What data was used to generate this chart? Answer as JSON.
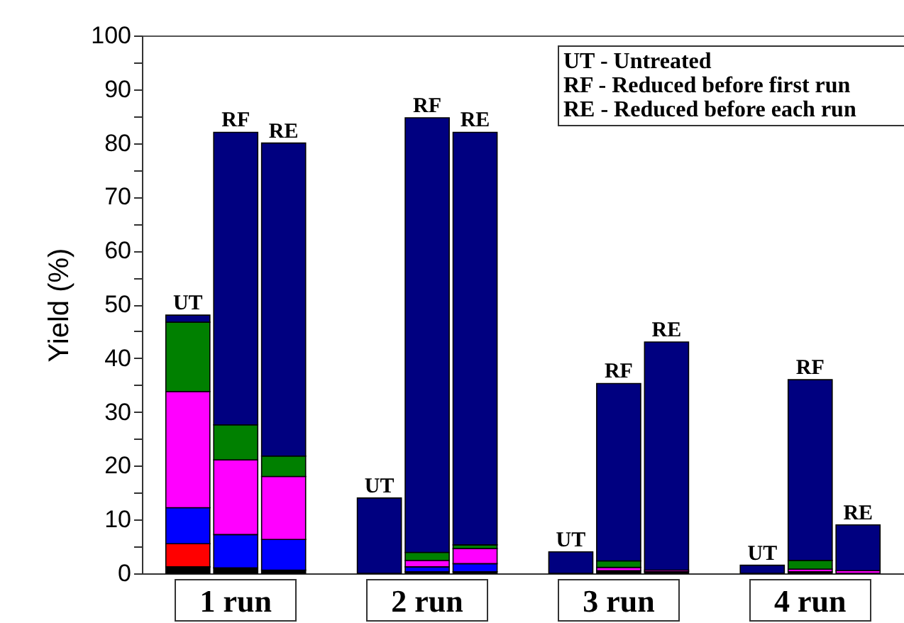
{
  "chart_data": {
    "type": "bar",
    "stacked": true,
    "ylabel": "Yield (%)",
    "categories": [
      null,
      null,
      null,
      null,
      null,
      null,
      null,
      null,
      null,
      null,
      null,
      null,
      null,
      null,
      null
    ],
    "series": [
      {
        "color": "#000000",
        "values": [
          1.2,
          1.0,
          0.6,
          null,
          null,
          0.3,
          0.3,
          null,
          null,
          0.5,
          0.3,
          null,
          null,
          0.3,
          null
        ]
      },
      {
        "color": "#ff0000",
        "values": [
          4.3,
          null,
          null,
          null,
          null,
          null,
          null,
          null,
          null,
          null,
          null,
          null,
          null,
          null,
          null
        ]
      },
      {
        "color": "#0000ff",
        "values": [
          6.7,
          6.2,
          5.7,
          null,
          null,
          0.9,
          1.5,
          null,
          null,
          null,
          null,
          null,
          null,
          null,
          null
        ]
      },
      {
        "color": "#ff00ff",
        "values": [
          21.6,
          13.9,
          11.7,
          null,
          null,
          1.2,
          2.8,
          null,
          null,
          0.6,
          0.3,
          null,
          null,
          0.5,
          0.5
        ]
      },
      {
        "color": "#008000",
        "values": [
          12.9,
          6.5,
          3.8,
          null,
          null,
          1.5,
          0.7,
          null,
          null,
          1.2,
          null,
          null,
          null,
          1.6,
          null
        ]
      },
      {
        "color": "#000080",
        "values": [
          1.3,
          54.4,
          58.2,
          null,
          14,
          80.8,
          76.7,
          null,
          4,
          33.0,
          42.4,
          null,
          1.5,
          33.6,
          8.5
        ],
        "value_labels": [
          "UT",
          "RF",
          "RE",
          null,
          "UT",
          "RF",
          "RE",
          null,
          "UT",
          "RF",
          "RE",
          null,
          "UT",
          "RF",
          "RE"
        ]
      }
    ],
    "ylim": [
      0,
      100
    ],
    "yticks": [
      0,
      {
        "value": 5,
        "label": null
      },
      10,
      {
        "value": 15,
        "label": null
      },
      20,
      {
        "value": 25,
        "label": null
      },
      30,
      {
        "value": 35,
        "label": null
      },
      40,
      {
        "value": 45,
        "label": null
      },
      50,
      {
        "value": 55,
        "label": null
      },
      60,
      {
        "value": 65,
        "label": null
      },
      70,
      {
        "value": 75,
        "label": null
      },
      80,
      {
        "value": 85,
        "label": null
      },
      90,
      {
        "value": 95,
        "label": null
      },
      100
    ],
    "annotations": [
      "UT - Untreated",
      "RF - Reduced before first run",
      "RE - Reduced before each run",
      "1 run",
      "2 run",
      "3 run",
      "4 run"
    ]
  }
}
